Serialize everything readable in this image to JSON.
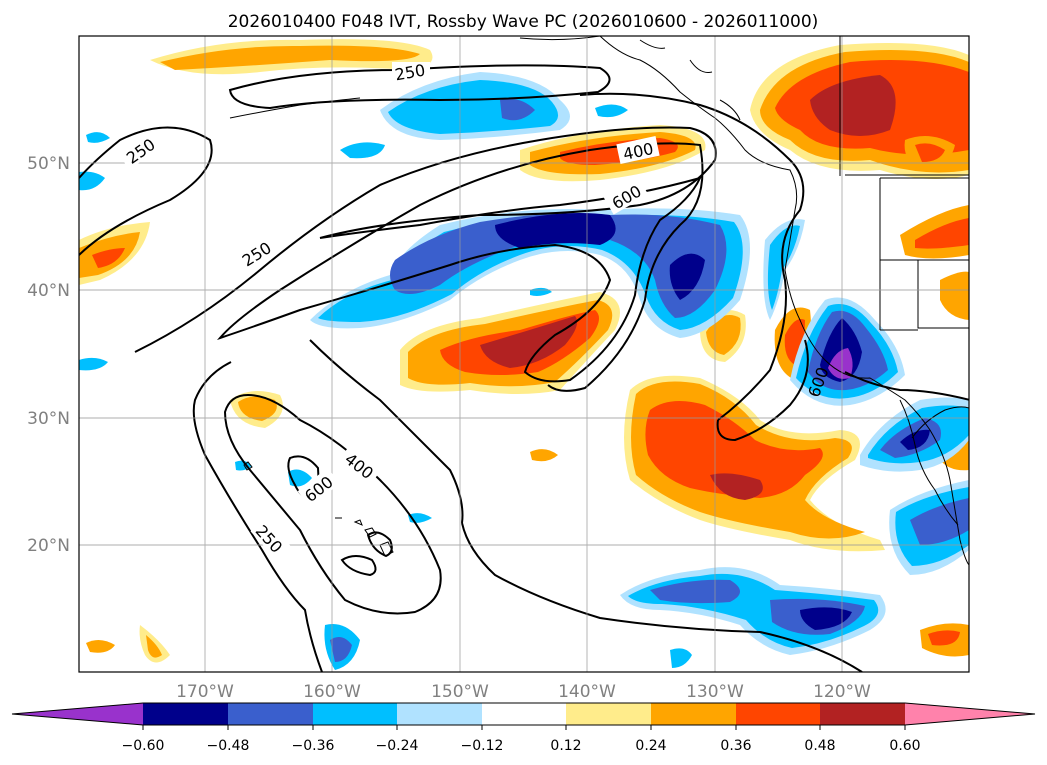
{
  "title": "2026010400 F048 IVT, Rossby Wave PC (2026010600 - 2026011000)",
  "map": {
    "lat_labels": [
      "50°N",
      "40°N",
      "30°N",
      "20°N"
    ],
    "lon_labels": [
      "170°W",
      "160°W",
      "150°W",
      "140°W",
      "130°W",
      "120°W"
    ],
    "ivt_contour_labels": [
      "250",
      "250",
      "250",
      "250",
      "400",
      "400",
      "600",
      "600",
      "600"
    ]
  },
  "colorbar": {
    "tick_labels": [
      "−0.60",
      "−0.48",
      "−0.36",
      "−0.24",
      "−0.12",
      "0.12",
      "0.24",
      "0.36",
      "0.48",
      "0.60"
    ],
    "colors": [
      "#9932cc",
      "#00008b",
      "#3a5fcd",
      "#00bfff",
      "#b0e2ff",
      "#ffffff",
      "#ffec8b",
      "#ffa500",
      "#ff4500",
      "#b22222",
      "#ff82ab"
    ]
  }
}
